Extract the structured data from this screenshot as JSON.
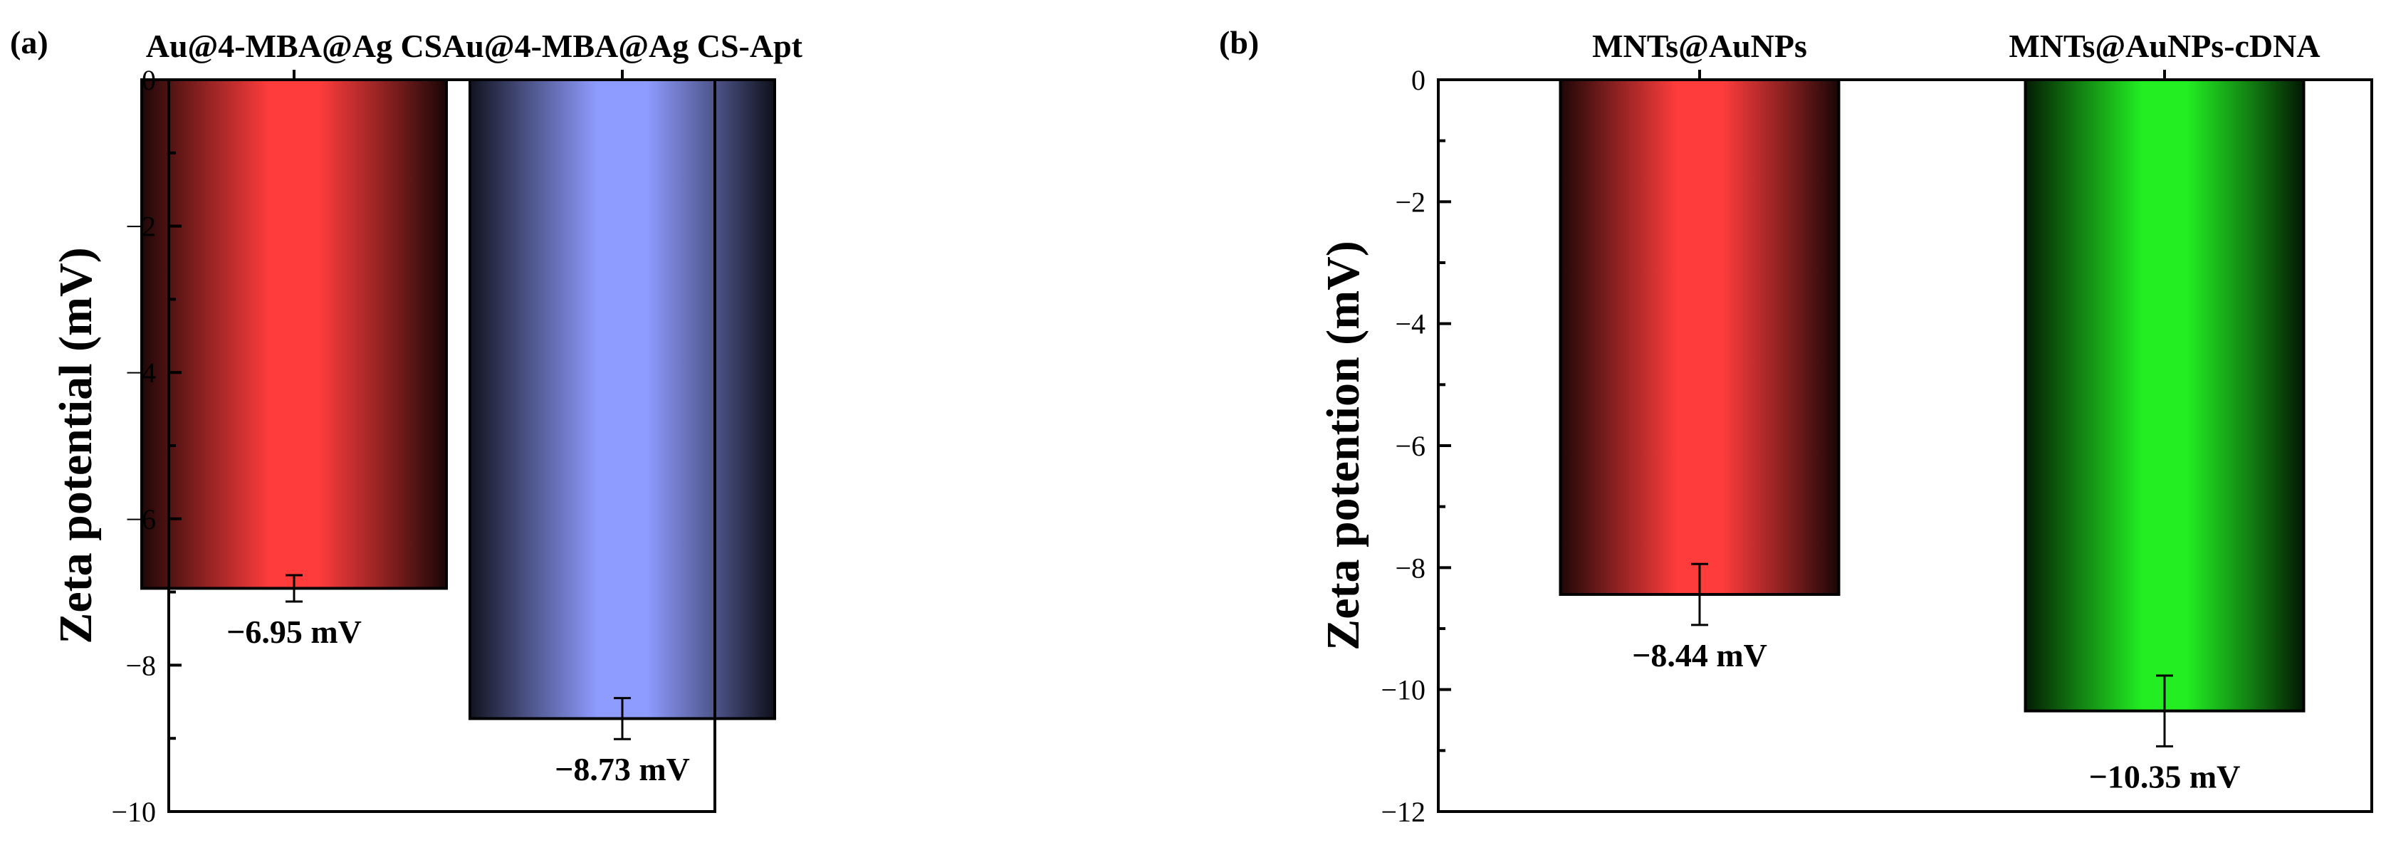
{
  "chart_data": [
    {
      "panel": "(a)",
      "type": "bar",
      "categories": [
        "Au@4-MBA@Ag CS",
        "Au@4-MBA@Ag CS-Apt"
      ],
      "values": [
        -6.95,
        -8.73
      ],
      "errors": [
        0.18,
        0.28
      ],
      "value_labels": [
        "−6.95 mV",
        "−8.73 mV"
      ],
      "colors": [
        "#ff3c3c",
        "#8f9cff"
      ],
      "ylabel": "Zeta potential (mV)",
      "ylim": [
        -10,
        0
      ],
      "yticks": [
        0,
        -2,
        -4,
        -6,
        -8,
        -10
      ],
      "ytick_labels": [
        "0",
        "−2",
        "−4",
        "−6",
        "−8",
        "−10"
      ],
      "category_labels_position": "top"
    },
    {
      "panel": "(b)",
      "type": "bar",
      "categories": [
        "MNTs@AuNPs",
        "MNTs@AuNPs-cDNA"
      ],
      "values": [
        -8.44,
        -10.35
      ],
      "errors": [
        0.5,
        0.58
      ],
      "value_labels": [
        "−8.44 mV",
        "−10.35 mV"
      ],
      "colors": [
        "#ff3c3c",
        "#22ee22"
      ],
      "ylabel": "Zeta potention (mV)",
      "ylim": [
        -12,
        0
      ],
      "yticks": [
        0,
        -2,
        -4,
        -6,
        -8,
        -10,
        -12
      ],
      "ytick_labels": [
        "0",
        "−2",
        "−4",
        "−6",
        "−8",
        "−10",
        "−12"
      ],
      "category_labels_position": "top"
    }
  ]
}
